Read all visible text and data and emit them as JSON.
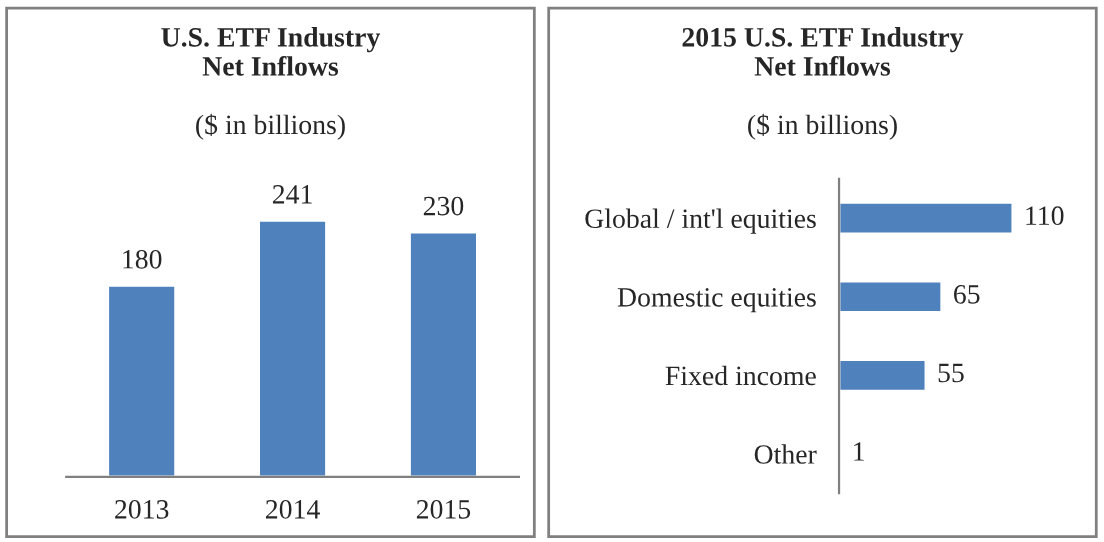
{
  "chart_data": [
    {
      "type": "bar",
      "title": "U.S. ETF Industry\nNet Inflows",
      "subtitle": "($ in billions)",
      "categories": [
        "2013",
        "2014",
        "2015"
      ],
      "values": [
        180,
        241,
        230
      ],
      "color": "#4f81bd",
      "data_labels": true,
      "grid": false,
      "legend": false
    },
    {
      "type": "bar",
      "orientation": "horizontal",
      "title": "2015 U.S. ETF Industry\nNet Inflows",
      "subtitle": "($ in billions)",
      "categories": [
        "Global / int'l equities",
        "Domestic equities",
        "Fixed income",
        "Other"
      ],
      "values": [
        110,
        65,
        55,
        1
      ],
      "color": "#4f81bd",
      "data_labels": true,
      "grid": false,
      "legend": false
    }
  ]
}
